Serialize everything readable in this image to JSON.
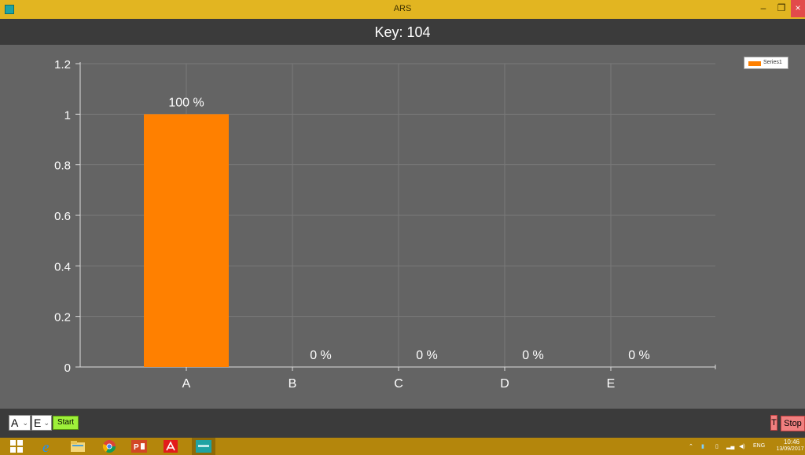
{
  "window": {
    "title": "ARS",
    "minimize_glyph": "–",
    "maximize_glyph": "❐",
    "close_glyph": "×"
  },
  "header": {
    "key_text": "Key: 104"
  },
  "legend": {
    "series_name": "Series1",
    "color": "#ff8000"
  },
  "chart_data": {
    "type": "bar",
    "categories": [
      "A",
      "B",
      "C",
      "D",
      "E"
    ],
    "series": [
      {
        "name": "Series1",
        "values": [
          1,
          0,
          0,
          0,
          0
        ],
        "color": "#ff8000"
      }
    ],
    "data_labels": [
      "100 %",
      "0 %",
      "0 %",
      "0 %",
      "0 %"
    ],
    "y_ticks": [
      "0",
      "0.2",
      "0.4",
      "0.6",
      "0.8",
      "1",
      "1.2"
    ],
    "ylim": [
      0,
      1.2
    ],
    "grid": true,
    "legend_position": "top-right",
    "background": "#646464"
  },
  "controls": {
    "from_value": "A",
    "to_value": "E",
    "start_label": "Start",
    "t_label": "T",
    "stop_label": "Stop"
  },
  "taskbar": {
    "icons": [
      "windows-start-icon",
      "internet-explorer-icon",
      "file-explorer-icon",
      "chrome-icon",
      "powerpoint-icon",
      "acrobat-icon",
      "ars-app-icon"
    ],
    "tray": {
      "language": "ENG",
      "time": "10:46",
      "date": "13/09/2017"
    }
  }
}
